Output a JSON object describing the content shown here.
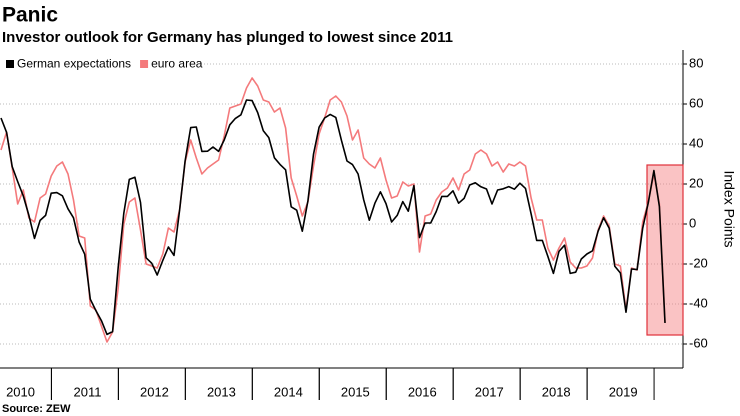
{
  "chart_data": {
    "type": "line",
    "title": "Panic",
    "subtitle": "Investor outlook for Germany has plunged to lowest since 2011",
    "y_label": "Index Points",
    "source": "Source: ZEW",
    "categories": [
      null,
      null,
      null,
      "2010",
      null,
      null,
      null,
      null,
      null,
      null,
      null,
      null,
      null,
      null,
      null,
      "2011",
      null,
      null,
      null,
      null,
      null,
      null,
      null,
      null,
      null,
      null,
      null,
      "2012",
      null,
      null,
      null,
      null,
      null,
      null,
      null,
      null,
      null,
      null,
      null,
      "2013",
      null,
      null,
      null,
      null,
      null,
      null,
      null,
      null,
      null,
      null,
      null,
      "2014",
      null,
      null,
      null,
      null,
      null,
      null,
      null,
      null,
      null,
      null,
      null,
      "2015",
      null,
      null,
      null,
      null,
      null,
      null,
      null,
      null,
      null,
      null,
      null,
      "2016",
      null,
      null,
      null,
      null,
      null,
      null,
      null,
      null,
      null,
      null,
      null,
      "2017",
      null,
      null,
      null,
      null,
      null,
      null,
      null,
      null,
      null,
      null,
      null,
      "2018",
      null,
      null,
      null,
      null,
      null,
      null,
      null,
      null,
      null,
      null,
      null,
      "2019",
      null,
      null,
      null,
      null,
      null,
      null,
      null,
      null
    ],
    "series": [
      {
        "name": "German expectations",
        "color": "#000000",
        "values": [
          53.0,
          45.8,
          28.7,
          21.2,
          14.0,
          4.3,
          -7.2,
          1.8,
          4.3,
          15.4,
          15.7,
          14.1,
          7.6,
          3.1,
          -9.0,
          -15.1,
          -37.6,
          -43.3,
          -48.3,
          -55.2,
          -53.8,
          -21.6,
          5.4,
          22.3,
          23.4,
          10.8,
          -16.9,
          -19.6,
          -25.5,
          -18.2,
          -11.5,
          -15.7,
          6.9,
          31.5,
          48.2,
          48.5,
          36.3,
          36.4,
          38.5,
          36.3,
          42.0,
          49.6,
          52.8,
          54.6,
          62.0,
          61.7,
          55.7,
          46.6,
          43.2,
          33.1,
          29.8,
          27.1,
          8.6,
          6.9,
          -3.6,
          11.5,
          34.9,
          48.4,
          53.0,
          54.8,
          53.3,
          41.9,
          31.5,
          29.7,
          25.0,
          12.1,
          1.9,
          10.4,
          16.1,
          10.2,
          1.0,
          4.3,
          11.2,
          6.4,
          19.2,
          -6.8,
          0.5,
          0.5,
          6.2,
          13.8,
          13.8,
          16.6,
          10.4,
          12.8,
          19.5,
          20.6,
          18.6,
          17.5,
          10.0,
          17.0,
          17.6,
          18.7,
          17.4,
          20.4,
          17.8,
          5.1,
          -8.2,
          -8.2,
          -16.1,
          -24.7,
          -13.7,
          -10.6,
          -24.7,
          -24.1,
          -17.5,
          -15.0,
          -13.4,
          -3.6,
          3.1,
          -2.1,
          -21.1,
          -24.5,
          -44.1,
          -22.5,
          -22.8,
          -2.1,
          10.7,
          26.7,
          8.7,
          -49.5
        ]
      },
      {
        "name": "euro area",
        "color": "#f47a7c",
        "values": [
          37,
          46,
          28,
          10,
          17,
          3,
          1,
          13,
          15,
          24,
          29,
          31,
          25,
          12,
          -6,
          -7,
          -41,
          -43,
          -51,
          -59,
          -54,
          -32,
          0,
          11,
          13,
          -3,
          -20,
          -21,
          -22,
          -15,
          -2,
          -4,
          7,
          31,
          42,
          33,
          25,
          28,
          30,
          32,
          44,
          58,
          59,
          60,
          68,
          73,
          69,
          62,
          61,
          56,
          58,
          48,
          23,
          14,
          4,
          11,
          29,
          45,
          53,
          62,
          64,
          61,
          54,
          42,
          47,
          33,
          30,
          28,
          33,
          22,
          13,
          14,
          21,
          19,
          20,
          -14,
          4,
          5,
          12,
          16,
          18,
          23,
          17,
          25,
          27,
          35,
          37,
          35,
          29,
          31,
          26,
          30,
          29,
          31,
          29,
          13,
          2,
          2,
          -12,
          -18,
          -12,
          -7,
          -19,
          -22,
          -22,
          -21,
          -17,
          -3,
          4,
          -1,
          -20,
          -21,
          -43,
          -22,
          -23,
          1,
          11,
          25,
          10,
          -49
        ]
      }
    ],
    "ylim": [
      -72,
      87
    ],
    "yticks": [
      -60,
      -40,
      -20,
      0,
      20,
      40,
      60,
      80
    ],
    "grid": true,
    "legend": "top-left"
  }
}
